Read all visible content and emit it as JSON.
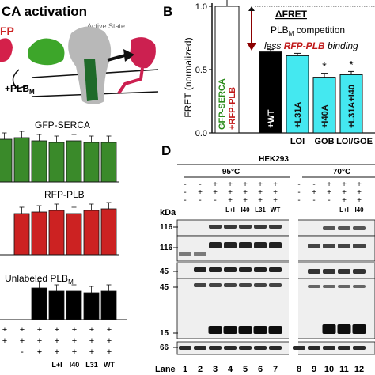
{
  "panel_a": {
    "title": "CA activation",
    "clipped_label": "FP",
    "state_label": "Active State",
    "plbm_label": "+PLB",
    "plbm_sub": "M",
    "gfp_label": "GFP-SERCA",
    "rfp_label": "RFP-PLB",
    "unlabeled_label": "Unlabeled PLB",
    "unlabeled_sub": "M",
    "row_minus": [
      "-",
      "-"
    ],
    "row_plus": [
      "+",
      "+",
      "+",
      "+",
      "+",
      "+",
      "+"
    ],
    "row_plus2": [
      "+",
      "+",
      "+",
      "+",
      "+",
      "+",
      "+"
    ],
    "row_variants": [
      "L+I",
      "I40",
      "L31",
      "WT"
    ],
    "colors": {
      "green": "#3a8a2a",
      "red": "#cc2222",
      "black": "#000000"
    }
  },
  "panel_b": {
    "letter": "B",
    "ylabel": "FRET (normalized)",
    "inset_label_1": "GFP-SERCA",
    "inset_label_2": "+RFP-PLB",
    "dfret": "ΔFRET",
    "comp_1": "PLB",
    "comp_sub": "M",
    "comp_2": " competition",
    "less_1": "less ",
    "less_2": "RFP-PLB",
    "less_3": " binding",
    "bar_labels": [
      "+WT",
      "+L31A",
      "+I40A",
      "+L31A+I40"
    ],
    "groups": [
      "LOI",
      "GOB",
      "LOI/GOE"
    ],
    "stars": [
      "*",
      "*"
    ],
    "colors": {
      "cyan": "#44e8f0",
      "black": "#000000"
    }
  },
  "chart_data": {
    "type": "bar",
    "ylabel": "FRET (normalized)",
    "categories": [
      "GFP-SERCA+RFP-PLB",
      "+WT",
      "+L31A",
      "+I40A",
      "+L31A+I40"
    ],
    "values": [
      1.0,
      0.64,
      0.61,
      0.44,
      0.46
    ],
    "ylim": [
      0,
      1.0
    ],
    "yticks": [
      0.0,
      0.5,
      1.0
    ],
    "ytick_labels": [
      "0.0",
      "0.5",
      "1.0"
    ]
  },
  "panel_d": {
    "letter": "D",
    "cell_line": "HEK293",
    "temp_1": "95°C",
    "temp_2": "70°C",
    "kda": "kDa",
    "markers": [
      "116",
      "116",
      "45",
      "45",
      "15",
      "66"
    ],
    "lane_label": "Lane",
    "lanes": [
      "1",
      "2",
      "3",
      "4",
      "5",
      "6",
      "7",
      "8",
      "9",
      "10",
      "11",
      "12"
    ],
    "row1": [
      "-",
      "-",
      "+",
      "+",
      "+",
      "+",
      "+",
      "-",
      "-",
      "+",
      "+",
      "+"
    ],
    "row2": [
      "-",
      "+",
      "+",
      "+",
      "+",
      "+",
      "+",
      "-",
      "+",
      "+",
      "+",
      "+"
    ],
    "row3": [
      "-",
      "-",
      "-",
      "+",
      "+",
      "+",
      "+",
      "-",
      "-",
      "-",
      "+",
      "+"
    ],
    "row4": [
      "",
      "",
      "",
      "L+I",
      "I40",
      "L31",
      "WT",
      "",
      "",
      "",
      "L+I",
      "I40"
    ]
  }
}
